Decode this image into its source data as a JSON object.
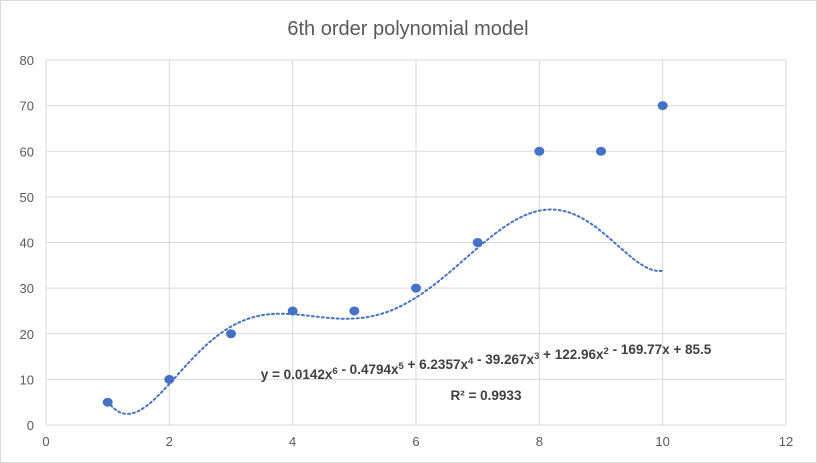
{
  "chart_data": {
    "type": "scatter",
    "title": "6th order polynomial model",
    "xlabel": "",
    "ylabel": "",
    "xlim": [
      0,
      12
    ],
    "ylim": [
      0,
      80
    ],
    "x_ticks": [
      0,
      2,
      4,
      6,
      8,
      10,
      12
    ],
    "y_ticks": [
      0,
      10,
      20,
      30,
      40,
      50,
      60,
      70,
      80
    ],
    "grid": "vertical and horizontal major gridlines",
    "legend": "none",
    "marker_color": "#4472c4",
    "series": [
      {
        "x": [
          1,
          2,
          3,
          4,
          5,
          6,
          7,
          8,
          9,
          10
        ],
        "y": [
          5,
          10,
          20,
          25,
          25,
          30,
          40,
          60,
          60,
          70
        ]
      }
    ],
    "trendline": {
      "type": "polynomial",
      "order": 6,
      "style": "dotted",
      "color": "#4472c4",
      "coefficients": [
        0.0142,
        -0.4794,
        6.2357,
        -39.267,
        122.96,
        -169.77,
        85.5
      ],
      "x_range": [
        1,
        10
      ],
      "equation_prefix": "y = 0.0142x",
      "equation_body": "6 - 0.4794x5 + 6.2357x4 - 39.267x3 + 122.96x2 - 169.77x + 85.5",
      "equation_superscripts": [
        "6",
        "5",
        "4",
        "3",
        "2"
      ],
      "equation_terms": [
        "y = 0.0142x",
        " - 0.4794x",
        " + 6.2357x",
        " - 39.267x",
        " + 122.96x",
        " - 169.77x + 85.5"
      ],
      "r_squared": "R² = 0.9933"
    }
  }
}
